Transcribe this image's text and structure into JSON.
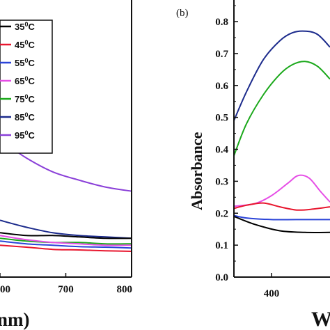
{
  "chart_data": [
    {
      "panel": "a",
      "type": "line",
      "xlabel_fragment": "nm)",
      "x_ticks": [
        "00",
        "700",
        "800"
      ],
      "xlim": [
        600,
        800
      ],
      "ylim": [
        0,
        1
      ],
      "legend": {
        "placement": "top-left",
        "entries": [
          {
            "base": "35",
            "sup": "0",
            "unit": "C",
            "color": "#000000"
          },
          {
            "base": "45",
            "sup": "0",
            "unit": "C",
            "color": "#e8162e"
          },
          {
            "base": "55",
            "sup": "0",
            "unit": "C",
            "color": "#2b44d8"
          },
          {
            "base": "65",
            "sup": "0",
            "unit": "C",
            "color": "#e64ee6"
          },
          {
            "base": "75",
            "sup": "0",
            "unit": "C",
            "color": "#1aa81a"
          },
          {
            "base": "85",
            "sup": "0",
            "unit": "C",
            "color": "#1c2b8c"
          },
          {
            "base": "95",
            "sup": "0",
            "unit": "C",
            "color": "#8a3fd8"
          }
        ]
      },
      "series": [
        {
          "color": "#8a3fd8",
          "x": [
            600,
            610,
            640,
            680,
            720,
            760,
            800
          ],
          "y": [
            0.505,
            0.48,
            0.43,
            0.38,
            0.35,
            0.325,
            0.31
          ]
        },
        {
          "color": "#1c2b8c",
          "x": [
            600,
            640,
            680,
            720,
            760,
            800
          ],
          "y": [
            0.205,
            0.18,
            0.16,
            0.15,
            0.145,
            0.14
          ]
        },
        {
          "color": "#000000",
          "x": [
            600,
            640,
            680,
            720,
            760,
            800
          ],
          "y": [
            0.16,
            0.15,
            0.15,
            0.145,
            0.14,
            0.14
          ]
        },
        {
          "color": "#1aa81a",
          "x": [
            600,
            640,
            680,
            720,
            760,
            800
          ],
          "y": [
            0.14,
            0.13,
            0.125,
            0.125,
            0.12,
            0.12
          ]
        },
        {
          "color": "#e64ee6",
          "x": [
            600,
            640,
            680,
            720,
            760,
            800
          ],
          "y": [
            0.15,
            0.135,
            0.125,
            0.12,
            0.115,
            0.115
          ]
        },
        {
          "color": "#2b44d8",
          "x": [
            600,
            640,
            680,
            720,
            760,
            800
          ],
          "y": [
            0.13,
            0.12,
            0.115,
            0.11,
            0.108,
            0.105
          ]
        },
        {
          "color": "#e8162e",
          "x": [
            600,
            640,
            680,
            720,
            760,
            800
          ],
          "y": [
            0.115,
            0.108,
            0.1,
            0.098,
            0.095,
            0.093
          ]
        }
      ]
    },
    {
      "panel": "b",
      "type": "line",
      "label": "(b)",
      "ylabel": "Absorbance",
      "xlabel_fragment": "W",
      "y_ticks": [
        "0.0",
        "0.1",
        "0.2",
        "0.3",
        "0.4",
        "0.5",
        "0.6",
        "0.7",
        "0.8"
      ],
      "x_ticks": [
        "400"
      ],
      "xlim": [
        355,
        470
      ],
      "ylim": [
        0,
        0.85
      ],
      "series": [
        {
          "color": "#1c2b8c",
          "x": [
            355,
            370,
            390,
            410,
            425,
            440,
            455,
            470
          ],
          "y": [
            0.49,
            0.58,
            0.68,
            0.74,
            0.765,
            0.77,
            0.76,
            0.72
          ]
        },
        {
          "color": "#1aa81a",
          "x": [
            355,
            370,
            390,
            410,
            425,
            440,
            455,
            470
          ],
          "y": [
            0.38,
            0.48,
            0.57,
            0.635,
            0.665,
            0.675,
            0.66,
            0.62
          ]
        },
        {
          "color": "#e64ee6",
          "x": [
            355,
            380,
            400,
            420,
            432,
            445,
            458,
            470
          ],
          "y": [
            0.222,
            0.23,
            0.255,
            0.295,
            0.318,
            0.31,
            0.27,
            0.235
          ]
        },
        {
          "color": "#e8162e",
          "x": [
            355,
            370,
            390,
            410,
            430,
            450,
            470
          ],
          "y": [
            0.215,
            0.225,
            0.232,
            0.22,
            0.21,
            0.213,
            0.22
          ]
        },
        {
          "color": "#2b44d8",
          "x": [
            355,
            370,
            400,
            430,
            470
          ],
          "y": [
            0.193,
            0.185,
            0.18,
            0.18,
            0.18
          ]
        },
        {
          "color": "#000000",
          "x": [
            355,
            380,
            410,
            440,
            470
          ],
          "y": [
            0.19,
            0.165,
            0.145,
            0.14,
            0.14
          ]
        }
      ]
    }
  ]
}
